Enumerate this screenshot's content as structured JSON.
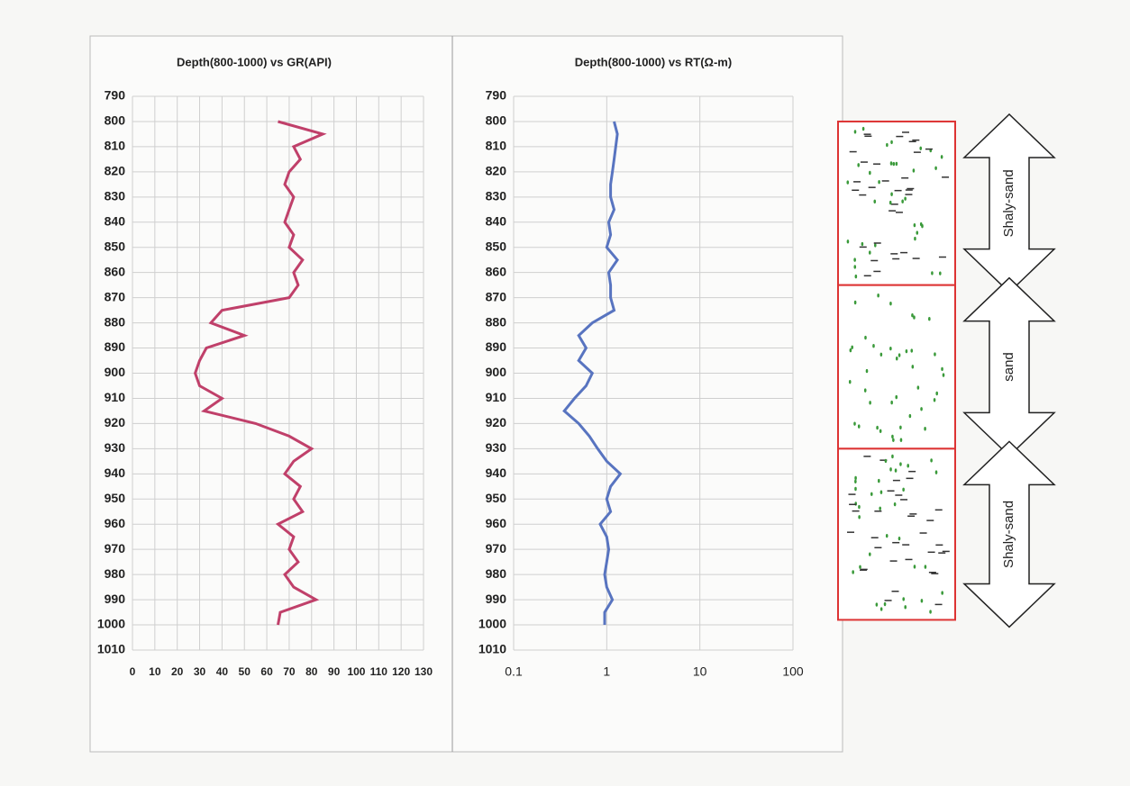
{
  "chart_data": [
    {
      "type": "line",
      "title": "Depth(800-1000) vs GR(API)",
      "color": "#c0406a",
      "grid": true,
      "y_reversed": true,
      "depth": [
        800,
        805,
        810,
        815,
        820,
        825,
        830,
        835,
        840,
        845,
        850,
        855,
        860,
        865,
        870,
        875,
        880,
        885,
        890,
        895,
        900,
        905,
        910,
        915,
        920,
        925,
        930,
        935,
        940,
        945,
        950,
        955,
        960,
        965,
        970,
        975,
        980,
        985,
        990,
        995,
        1000
      ],
      "values": [
        65,
        85,
        72,
        75,
        70,
        68,
        72,
        70,
        68,
        72,
        70,
        76,
        72,
        74,
        70,
        40,
        35,
        50,
        33,
        30,
        28,
        30,
        40,
        32,
        55,
        70,
        80,
        72,
        68,
        75,
        72,
        76,
        65,
        72,
        70,
        74,
        68,
        72,
        82,
        66,
        65
      ],
      "xlim": [
        0,
        130
      ],
      "xticks": [
        0,
        10,
        20,
        30,
        40,
        50,
        60,
        70,
        80,
        90,
        100,
        110,
        120,
        130
      ],
      "ylim": [
        790,
        1010
      ],
      "yticks": [
        790,
        800,
        810,
        820,
        830,
        840,
        850,
        860,
        870,
        880,
        890,
        900,
        910,
        920,
        930,
        940,
        950,
        960,
        970,
        980,
        990,
        1000,
        1010
      ]
    },
    {
      "type": "line",
      "title": "Depth(800-1000) vs RT(Ω-m)",
      "color": "#5874c0",
      "grid": true,
      "y_reversed": true,
      "x_log": true,
      "depth": [
        800,
        805,
        810,
        815,
        820,
        825,
        830,
        835,
        840,
        845,
        850,
        855,
        860,
        865,
        870,
        875,
        880,
        885,
        890,
        895,
        900,
        905,
        910,
        915,
        920,
        925,
        930,
        935,
        940,
        945,
        950,
        955,
        960,
        965,
        970,
        975,
        980,
        985,
        990,
        995,
        1000
      ],
      "values": [
        1.2,
        1.3,
        1.25,
        1.2,
        1.15,
        1.1,
        1.1,
        1.2,
        1.05,
        1.1,
        1.0,
        1.3,
        1.05,
        1.1,
        1.1,
        1.2,
        0.7,
        0.5,
        0.6,
        0.5,
        0.7,
        0.6,
        0.45,
        0.35,
        0.5,
        0.65,
        0.8,
        1.0,
        1.4,
        1.1,
        1.0,
        1.1,
        0.85,
        1.0,
        1.05,
        1.0,
        0.95,
        1.0,
        1.15,
        0.95,
        0.95
      ],
      "xlim": [
        0.1,
        100
      ],
      "xticks": [
        0.1,
        1,
        10,
        100
      ],
      "ylim": [
        790,
        1010
      ],
      "yticks": [
        790,
        800,
        810,
        820,
        830,
        840,
        850,
        860,
        870,
        880,
        890,
        900,
        910,
        920,
        930,
        940,
        950,
        960,
        970,
        980,
        990,
        1000,
        1010
      ]
    }
  ],
  "lithology": {
    "intervals": [
      {
        "label": "Shaly-sand",
        "top": 800,
        "bottom": 865
      },
      {
        "label": "sand",
        "top": 865,
        "bottom": 930
      },
      {
        "label": "Shaly-sand",
        "top": 930,
        "bottom": 998
      }
    ]
  }
}
